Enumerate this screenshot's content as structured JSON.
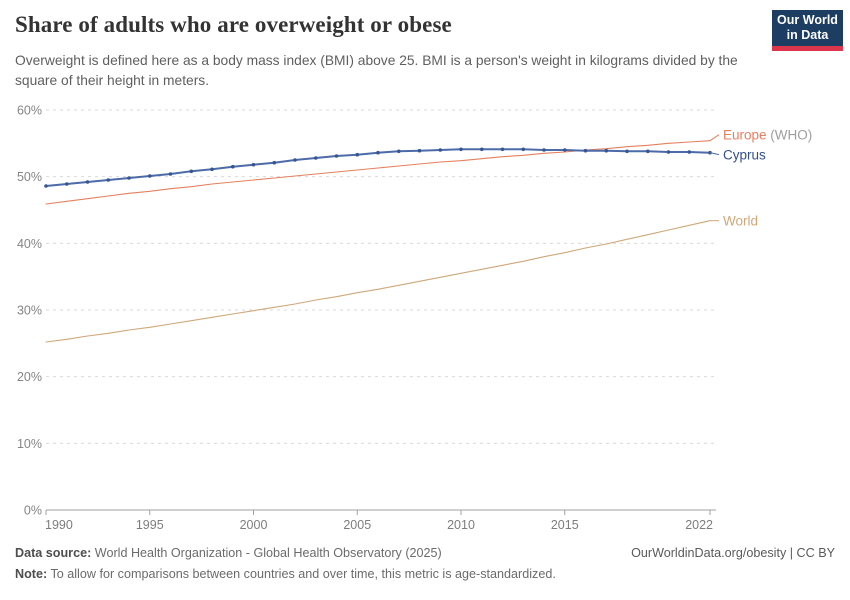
{
  "header": {
    "title": "Share of adults who are overweight or obese",
    "subtitle": "Overweight is defined here as a body mass index (BMI) above 25. BMI is a person's weight in kilograms divided by the square of their height in meters.",
    "logo": {
      "line1": "Our World",
      "line2": "in Data",
      "bg_color": "#1d3d63",
      "accent_color": "#dc354c"
    }
  },
  "chart_data": {
    "type": "line",
    "title": "Share of adults who are overweight or obese",
    "x": [
      1990,
      1991,
      1992,
      1993,
      1994,
      1995,
      1996,
      1997,
      1998,
      1999,
      2000,
      2001,
      2002,
      2003,
      2004,
      2005,
      2006,
      2007,
      2008,
      2009,
      2010,
      2011,
      2012,
      2013,
      2014,
      2015,
      2016,
      2017,
      2018,
      2019,
      2020,
      2021,
      2022
    ],
    "series": [
      {
        "name": "Europe (WHO)",
        "label": "Europe",
        "label_suffix": " (WHO)",
        "suffix_color": "#9e9e9e",
        "color": "#e5805f",
        "line_width": 1.1,
        "markers": false,
        "label_dy": -6,
        "values": [
          45.9,
          46.3,
          46.7,
          47.1,
          47.5,
          47.8,
          48.2,
          48.5,
          48.9,
          49.2,
          49.5,
          49.8,
          50.1,
          50.4,
          50.7,
          51.0,
          51.3,
          51.6,
          51.9,
          52.2,
          52.4,
          52.7,
          53.0,
          53.2,
          53.5,
          53.7,
          54.0,
          54.2,
          54.5,
          54.7,
          55.0,
          55.2,
          55.4
        ]
      },
      {
        "name": "Cyprus",
        "label": "Cyprus",
        "label_suffix": "",
        "suffix_color": "#9e9e9e",
        "color": "#4c6ba8",
        "label_color": "#31508f",
        "marker_color": "#38568f",
        "line_width": 2,
        "markers": true,
        "label_dy": 2,
        "values": [
          48.6,
          48.9,
          49.2,
          49.5,
          49.8,
          50.1,
          50.4,
          50.8,
          51.1,
          51.5,
          51.8,
          52.1,
          52.5,
          52.8,
          53.1,
          53.3,
          53.6,
          53.8,
          53.9,
          54.0,
          54.1,
          54.1,
          54.1,
          54.1,
          54.0,
          54.0,
          53.9,
          53.9,
          53.8,
          53.8,
          53.7,
          53.7,
          53.6
        ]
      },
      {
        "name": "World",
        "label": "World",
        "label_suffix": "",
        "suffix_color": "#9e9e9e",
        "color": "#cfa879",
        "line_width": 1.1,
        "markers": false,
        "label_dy": 0,
        "values": [
          25.2,
          25.6,
          26.1,
          26.5,
          27.0,
          27.4,
          27.9,
          28.4,
          28.9,
          29.4,
          29.9,
          30.4,
          30.9,
          31.5,
          32.0,
          32.6,
          33.1,
          33.7,
          34.3,
          34.9,
          35.5,
          36.1,
          36.7,
          37.3,
          38.0,
          38.6,
          39.3,
          39.9,
          40.6,
          41.3,
          42.0,
          42.7,
          43.4
        ]
      }
    ],
    "ylim": [
      0,
      60
    ],
    "yticks": [
      0,
      10,
      20,
      30,
      40,
      50,
      60
    ],
    "ytick_suffix": "%",
    "xticks": [
      1990,
      1995,
      2000,
      2005,
      2010,
      2015,
      2022
    ],
    "grid": "horizontal-dashed",
    "legend_position": "right-of-line-end"
  },
  "footer": {
    "data_source_label": "Data source:",
    "data_source_value": " World Health Organization - Global Health Observatory (2025)",
    "link": "OurWorldinData.org/obesity | CC BY",
    "note_label": "Note:",
    "note_value": " To allow for comparisons between countries and over time, this metric is age-standardized."
  }
}
